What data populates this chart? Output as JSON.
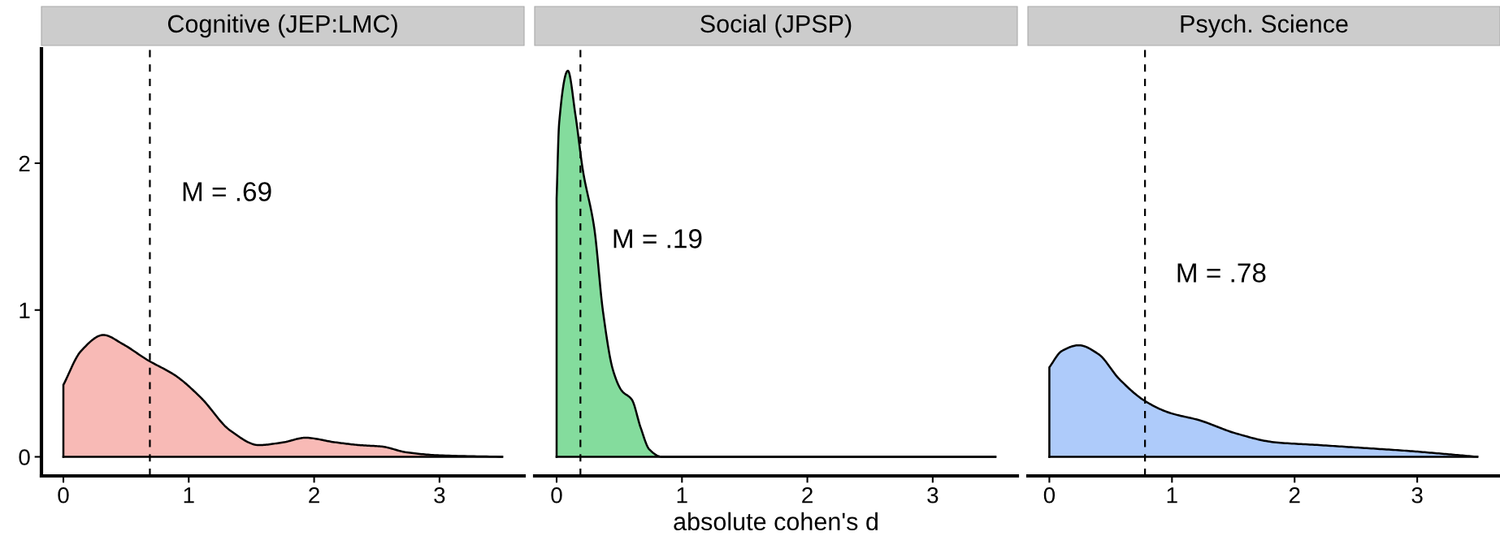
{
  "chart_data": [
    {
      "type": "area",
      "title": "Cognitive (JEP:LMC)",
      "x": [
        0,
        0.14,
        0.32,
        0.47,
        0.67,
        0.9,
        1.1,
        1.33,
        1.56,
        1.76,
        1.93,
        2.16,
        2.36,
        2.54,
        2.74,
        3.0,
        3.5
      ],
      "series": [
        {
          "color": "#f8bab6",
          "values": [
            0.49,
            0.72,
            0.83,
            0.77,
            0.66,
            0.55,
            0.4,
            0.18,
            0.08,
            0.1,
            0.13,
            0.1,
            0.08,
            0.07,
            0.03,
            0.01,
            0.0
          ]
        }
      ],
      "xlim": [
        -0.175,
        3.675
      ],
      "ylim": [
        -0.13,
        2.78
      ],
      "xticks": [
        0,
        1,
        2,
        3
      ],
      "yticks": [
        0,
        1,
        2
      ],
      "ref_lines": [
        {
          "axis": "x",
          "value": 0.69,
          "line_style": "dashed"
        }
      ],
      "annotations": [
        "M = .69"
      ]
    },
    {
      "type": "area",
      "title": "Social (JPSP)",
      "xlabel": "absolute cohen's d",
      "x": [
        0,
        0.02,
        0.09,
        0.15,
        0.21,
        0.3,
        0.37,
        0.45,
        0.52,
        0.6,
        0.67,
        0.74,
        0.84,
        3.5
      ],
      "series": [
        {
          "color": "#84dc9d",
          "values": [
            1.76,
            2.27,
            2.63,
            2.33,
            1.95,
            1.56,
            0.99,
            0.59,
            0.45,
            0.39,
            0.2,
            0.05,
            0.0,
            0.0
          ]
        }
      ],
      "xlim": [
        -0.175,
        3.675
      ],
      "ylim": [
        -0.13,
        2.78
      ],
      "xticks": [
        0,
        1,
        2,
        3
      ],
      "tick_labels": "x",
      "ref_lines": [
        {
          "axis": "x",
          "value": 0.19,
          "line_style": "dashed"
        }
      ],
      "annotations": [
        "M = .19"
      ]
    },
    {
      "type": "area",
      "title": "Psych. Science",
      "x": [
        0,
        0.1,
        0.24,
        0.4,
        0.57,
        0.78,
        0.98,
        1.22,
        1.52,
        1.83,
        2.2,
        2.57,
        2.93,
        3.22,
        3.49
      ],
      "series": [
        {
          "color": "#aecbfa",
          "values": [
            0.61,
            0.72,
            0.76,
            0.7,
            0.53,
            0.38,
            0.3,
            0.25,
            0.16,
            0.1,
            0.08,
            0.06,
            0.04,
            0.02,
            0.0
          ]
        }
      ],
      "xlim": [
        -0.175,
        3.675
      ],
      "ylim": [
        -0.13,
        2.78
      ],
      "xticks": [
        0,
        1,
        2,
        3
      ],
      "tick_labels": "x",
      "ref_lines": [
        {
          "axis": "x",
          "value": 0.78,
          "line_style": "dashed"
        }
      ],
      "annotations": [
        "M = .78"
      ]
    }
  ]
}
